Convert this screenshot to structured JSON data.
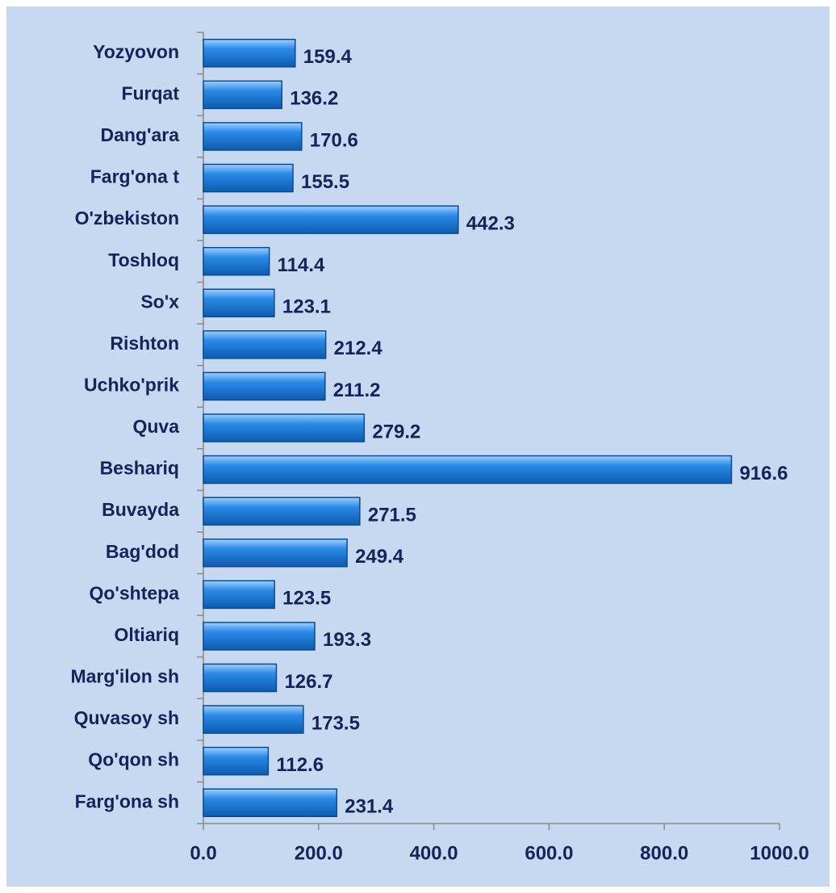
{
  "chart_data": {
    "type": "bar",
    "orientation": "horizontal",
    "categories": [
      "Yozyovon",
      "Furqat",
      "Dang'ara",
      "Farg'ona t",
      "O'zbekiston",
      "Toshloq",
      "So'x",
      "Rishton",
      "Uchko'prik",
      "Quva",
      "Beshariq",
      "Buvayda",
      "Bag'dod",
      "Qo'shtepa",
      "Oltiariq",
      "Marg'ilon sh",
      "Quvasoy sh",
      "Qo'qon sh",
      "Farg'ona sh"
    ],
    "values": [
      159.4,
      136.2,
      170.6,
      155.5,
      442.3,
      114.4,
      123.1,
      212.4,
      211.2,
      279.2,
      916.6,
      271.5,
      249.4,
      123.5,
      193.3,
      126.7,
      173.5,
      112.6,
      231.4
    ],
    "color": "#1a78d4",
    "xlim": [
      0,
      1000
    ],
    "xticks": [
      {
        "value": 0,
        "label": "0.0"
      },
      {
        "value": 200,
        "label": "200.0"
      },
      {
        "value": 400,
        "label": "400.0"
      },
      {
        "value": 600,
        "label": "600.0"
      },
      {
        "value": 800,
        "label": "800.0"
      },
      {
        "value": 1000,
        "label": "1000.0"
      }
    ]
  }
}
